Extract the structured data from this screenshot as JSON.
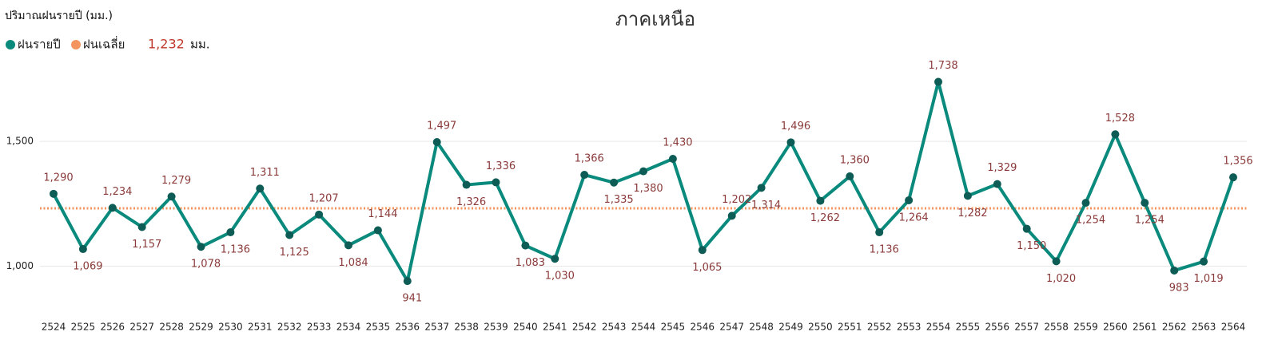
{
  "chart_data": {
    "type": "line",
    "title": "ภาคเหนือ",
    "y_axis_label": "ปริมาณฝนรายปี (มม.)",
    "categories": [
      "2524",
      "2525",
      "2526",
      "2527",
      "2528",
      "2529",
      "2530",
      "2531",
      "2532",
      "2533",
      "2534",
      "2535",
      "2536",
      "2537",
      "2538",
      "2539",
      "2540",
      "2541",
      "2542",
      "2543",
      "2544",
      "2545",
      "2546",
      "2547",
      "2548",
      "2549",
      "2550",
      "2551",
      "2552",
      "2553",
      "2554",
      "2555",
      "2556",
      "2557",
      "2558",
      "2559",
      "2560",
      "2561",
      "2562",
      "2563",
      "2564"
    ],
    "series": [
      {
        "name": "ฝนรายปี",
        "color": "#0a8a7c",
        "marker_color": "#0d5c55",
        "values": [
          1290,
          1069,
          1234,
          1157,
          1279,
          1078,
          1136,
          1311,
          1125,
          1207,
          1084,
          1144,
          941,
          1497,
          1326,
          1336,
          1083,
          1030,
          1366,
          1335,
          1380,
          1430,
          1065,
          1202,
          1314,
          1496,
          1262,
          1360,
          1136,
          1264,
          1738,
          1282,
          1329,
          1150,
          1020,
          1254,
          1528,
          1254,
          983,
          1019,
          1356
        ],
        "value_labels": [
          "1,290",
          "1,069",
          "1,234",
          "1,157",
          "1,279",
          "1,078",
          "1,136",
          "1,311",
          "1,125",
          "1,207",
          "1,084",
          "1,144",
          "941",
          "1,497",
          "1,326",
          "1,336",
          "1,083",
          "1,030",
          "1,366",
          "1,335",
          "1,380",
          "1,430",
          "1,065",
          "1,202",
          "1,314",
          "1,496",
          "1,262",
          "1,360",
          "1,136",
          "1,264",
          "1,738",
          "1,282",
          "1,329",
          "1,150",
          "1,020",
          "1,254",
          "1,528",
          "1,254",
          "983",
          "1,019",
          "1,356"
        ]
      }
    ],
    "average": {
      "name": "ฝนเฉลี่ย",
      "color": "#f4955f",
      "value": 1232,
      "label": "1,232",
      "unit": "มม."
    },
    "ylim": [
      820,
      1810
    ],
    "yticks": [
      {
        "value": 1000,
        "label": "1,000"
      },
      {
        "value": 1500,
        "label": "1,500"
      }
    ],
    "grid": true
  }
}
